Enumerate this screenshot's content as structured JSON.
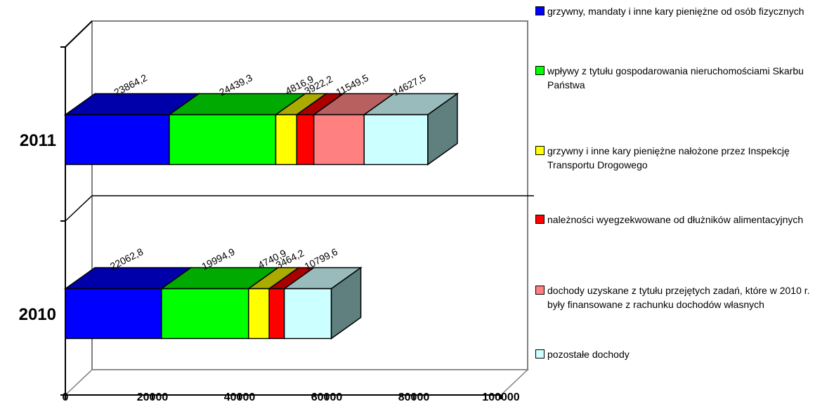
{
  "chart_data": {
    "type": "bar",
    "orientation": "horizontal",
    "stacked": true,
    "style": "3d",
    "title": "",
    "xlabel": "",
    "ylabel": "",
    "categories": [
      "2011",
      "2010"
    ],
    "xlim": [
      0,
      100000
    ],
    "x_ticks": [
      "0",
      "20000",
      "40000",
      "60000",
      "80000",
      "100000"
    ],
    "grid": true,
    "legend_position": "right",
    "series": [
      {
        "name": "grzywny, mandaty i inne kary pieniężne od osób fizycznych",
        "color": "#0000FF",
        "top_color": "#0000AA",
        "values": [
          23864.2,
          22062.8
        ],
        "labels": [
          "23864,2",
          "22062,8"
        ]
      },
      {
        "name": "wpływy z tytułu gospodarowania nieruchomościami Skarbu Państwa",
        "color": "#00FF00",
        "top_color": "#00AA00",
        "values": [
          24439.3,
          19994.9
        ],
        "labels": [
          "24439,3",
          "19994,9"
        ]
      },
      {
        "name": "grzywny i inne kary pieniężne nałożone przez Inspekcję Transportu Drogowego",
        "color": "#FFFF00",
        "top_color": "#AAAA00",
        "values": [
          4816.9,
          4740.9
        ],
        "labels": [
          "4816,9",
          "4740,9"
        ]
      },
      {
        "name": "należności wyegzekwowane od dłużników alimentacyjnych",
        "color": "#FF0000",
        "top_color": "#AA0000",
        "values": [
          3922.2,
          3464.2
        ],
        "labels": [
          "3922,2",
          "3464,2"
        ]
      },
      {
        "name": "dochody uzyskane z tytułu przejętych zadań, które w 2010 r. były finansowane z rachunku dochodów własnych",
        "color": "#FF8080",
        "top_color": "#B86060",
        "values": [
          11549.5,
          0
        ],
        "labels": [
          "11549,5",
          ""
        ]
      },
      {
        "name": "pozostałe dochody",
        "color": "#CCFFFF",
        "top_color": "#99BBBB",
        "values": [
          14627.5,
          10799.6
        ],
        "labels": [
          "14627,5",
          "10799,6"
        ]
      }
    ],
    "side_color": "#608080"
  }
}
